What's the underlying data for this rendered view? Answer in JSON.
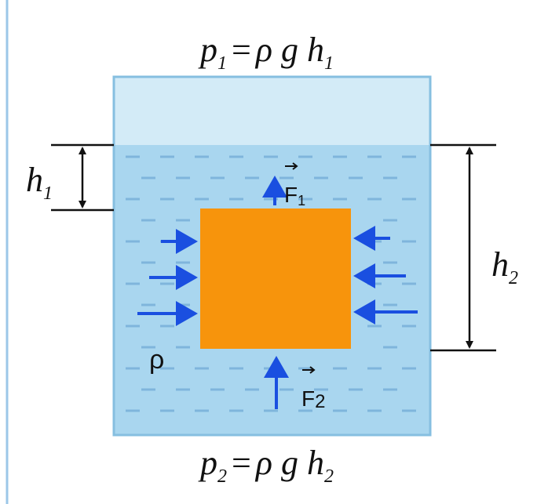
{
  "top_formula": {
    "symbol": "p",
    "index": "1",
    "equals": "=",
    "rhs": "ρ g h",
    "rhs_index": "1"
  },
  "bottom_formula": {
    "symbol": "p",
    "index": "2",
    "equals": "=",
    "rhs": "ρ g h",
    "rhs_index": "2"
  },
  "depth_1": {
    "symbol": "h",
    "index": "1"
  },
  "depth_2": {
    "symbol": "h",
    "index": "2"
  },
  "force_top": {
    "symbol": "F",
    "index": "1"
  },
  "force_bottom": {
    "symbol": "F",
    "index": "2"
  },
  "density": "ρ"
}
